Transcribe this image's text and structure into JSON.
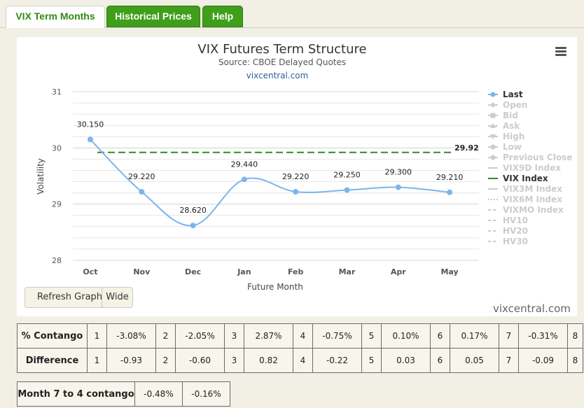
{
  "tabs": [
    {
      "label": "VIX Term Months",
      "active": true
    },
    {
      "label": "Historical Prices",
      "active": false
    },
    {
      "label": "Help",
      "active": false
    }
  ],
  "chart_data": {
    "type": "line",
    "title": "VIX Futures Term Structure",
    "subtitle": "Source: CBOE Delayed Quotes",
    "source_link": "vixcentral.com",
    "xlabel": "Future Month",
    "ylabel": "Volatility",
    "categories": [
      "Oct",
      "Nov",
      "Dec",
      "Jan",
      "Feb",
      "Mar",
      "Apr",
      "May"
    ],
    "ylim": [
      28,
      31
    ],
    "yticks": [
      28,
      29,
      30,
      31
    ],
    "grid": true,
    "legend_position": "right",
    "series": [
      {
        "name": "Last",
        "values": [
          30.15,
          29.22,
          28.62,
          29.44,
          29.22,
          29.25,
          29.3,
          29.21
        ],
        "labels": [
          "30.150",
          "29.220",
          "28.620",
          "29.440",
          "29.220",
          "29.250",
          "29.300",
          "29.210"
        ],
        "color": "#7cb5ec"
      },
      {
        "name": "VIX Index",
        "value": 29.92,
        "label": "29.92",
        "color": "#2e8b22"
      }
    ],
    "legend": [
      {
        "name": "Last",
        "active": true,
        "marker": "circle"
      },
      {
        "name": "Open",
        "active": false,
        "marker": "diamond"
      },
      {
        "name": "Bid",
        "active": false,
        "marker": "square"
      },
      {
        "name": "Ask",
        "active": false,
        "marker": "triangle"
      },
      {
        "name": "High",
        "active": false,
        "marker": "triangle-down"
      },
      {
        "name": "Low",
        "active": false,
        "marker": "circle"
      },
      {
        "name": "Previous Close",
        "active": false,
        "marker": "circle"
      },
      {
        "name": "VIX9D Index",
        "active": false,
        "marker": "line"
      },
      {
        "name": "VIX Index",
        "active": true,
        "marker": "line"
      },
      {
        "name": "VIX3M Index",
        "active": false,
        "marker": "line"
      },
      {
        "name": "VIX6M Index",
        "active": false,
        "marker": "dotted"
      },
      {
        "name": "VIXMO Index",
        "active": false,
        "marker": "dashed"
      },
      {
        "name": "HV10",
        "active": false,
        "marker": "dashed"
      },
      {
        "name": "HV20",
        "active": false,
        "marker": "dashed"
      },
      {
        "name": "HV30",
        "active": false,
        "marker": "dashed"
      }
    ]
  },
  "buttons": {
    "refresh": "Refresh Graph",
    "wide": "Wide"
  },
  "watermark": "vixcentral.com",
  "contango_table": {
    "rows": [
      {
        "label": "% Contango",
        "cells": [
          "1",
          "-3.08%",
          "2",
          "-2.05%",
          "3",
          "2.87%",
          "4",
          "-0.75%",
          "5",
          "0.10%",
          "6",
          "0.17%",
          "7",
          "-0.31%",
          "8"
        ]
      },
      {
        "label": "Difference",
        "cells": [
          "1",
          "-0.93",
          "2",
          "-0.60",
          "3",
          "0.82",
          "4",
          "-0.22",
          "5",
          "0.03",
          "6",
          "0.05",
          "7",
          "-0.09",
          "8"
        ]
      }
    ]
  },
  "month_table": {
    "label": "Month 7 to 4 contango",
    "values": [
      "-0.48%",
      "-0.16%"
    ]
  }
}
